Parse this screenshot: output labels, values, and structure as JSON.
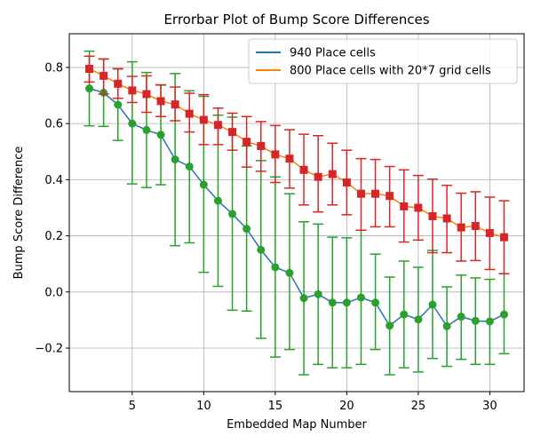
{
  "chart_data": {
    "type": "line",
    "title": "Errorbar Plot of Bump Score Differences",
    "xlabel": "Embedded Map Number",
    "ylabel": "Bump Score Difference",
    "xlim": [
      0.6,
      32.4
    ],
    "ylim": [
      -0.355,
      0.92
    ],
    "xticks": [
      5,
      10,
      15,
      20,
      25,
      30
    ],
    "yticks": [
      -0.2,
      0.0,
      0.2,
      0.4,
      0.6,
      0.8
    ],
    "ytick_labels": [
      "−0.2",
      "0.0",
      "0.2",
      "0.4",
      "0.6",
      "0.8"
    ],
    "grid": true,
    "legend_position": "top-right",
    "x": [
      2,
      3,
      4,
      5,
      6,
      7,
      8,
      9,
      10,
      11,
      12,
      13,
      14,
      15,
      16,
      17,
      18,
      19,
      20,
      21,
      22,
      23,
      24,
      25,
      26,
      27,
      28,
      29,
      30,
      31
    ],
    "series": [
      {
        "name": "940 Place cells",
        "line_color": "#1f77b4",
        "marker_color": "#2ca02c",
        "marker": "circle",
        "values": [
          0.725,
          0.71,
          0.667,
          0.6,
          0.577,
          0.56,
          0.472,
          0.447,
          0.382,
          0.325,
          0.278,
          0.225,
          0.15,
          0.088,
          0.068,
          -0.022,
          -0.008,
          -0.038,
          -0.038,
          -0.02,
          -0.038,
          -0.12,
          -0.08,
          -0.098,
          -0.045,
          -0.122,
          -0.088,
          -0.103,
          -0.105,
          -0.08
        ],
        "err_low": [
          0.592,
          0.59,
          0.54,
          0.385,
          0.372,
          0.382,
          0.165,
          0.175,
          0.07,
          0.02,
          -0.065,
          -0.068,
          -0.165,
          -0.232,
          -0.205,
          -0.295,
          -0.258,
          -0.27,
          -0.27,
          -0.258,
          -0.205,
          -0.295,
          -0.27,
          -0.285,
          -0.237,
          -0.265,
          -0.24,
          -0.258,
          -0.258,
          -0.22
        ],
        "err_high": [
          0.858,
          0.83,
          0.795,
          0.82,
          0.782,
          0.737,
          0.778,
          0.717,
          0.697,
          0.63,
          0.623,
          0.52,
          0.468,
          0.41,
          0.35,
          0.25,
          0.242,
          0.195,
          0.193,
          0.22,
          0.135,
          0.053,
          0.11,
          0.088,
          0.148,
          0.018,
          0.06,
          0.05,
          0.045,
          0.065
        ]
      },
      {
        "name": "800 Place cells with 20*7 grid cells",
        "line_color": "#ff7f0e",
        "marker_color": "#d62728",
        "marker": "square",
        "values": [
          0.795,
          0.77,
          0.742,
          0.718,
          0.705,
          0.68,
          0.668,
          0.635,
          0.613,
          0.595,
          0.57,
          0.535,
          0.52,
          0.49,
          0.475,
          0.435,
          0.41,
          0.42,
          0.39,
          0.35,
          0.35,
          0.342,
          0.305,
          0.3,
          0.27,
          0.262,
          0.23,
          0.235,
          0.21,
          0.195
        ],
        "err_low": [
          0.748,
          0.705,
          0.69,
          0.675,
          0.64,
          0.625,
          0.61,
          0.57,
          0.525,
          0.525,
          0.505,
          0.445,
          0.43,
          0.39,
          0.37,
          0.31,
          0.285,
          0.31,
          0.275,
          0.22,
          0.232,
          0.232,
          0.178,
          0.185,
          0.14,
          0.14,
          0.11,
          0.112,
          0.08,
          0.065
        ],
        "err_high": [
          0.84,
          0.83,
          0.795,
          0.768,
          0.77,
          0.738,
          0.73,
          0.708,
          0.703,
          0.655,
          0.637,
          0.625,
          0.607,
          0.593,
          0.578,
          0.562,
          0.557,
          0.53,
          0.505,
          0.475,
          0.472,
          0.447,
          0.435,
          0.415,
          0.402,
          0.38,
          0.352,
          0.357,
          0.338,
          0.325
        ]
      }
    ]
  }
}
